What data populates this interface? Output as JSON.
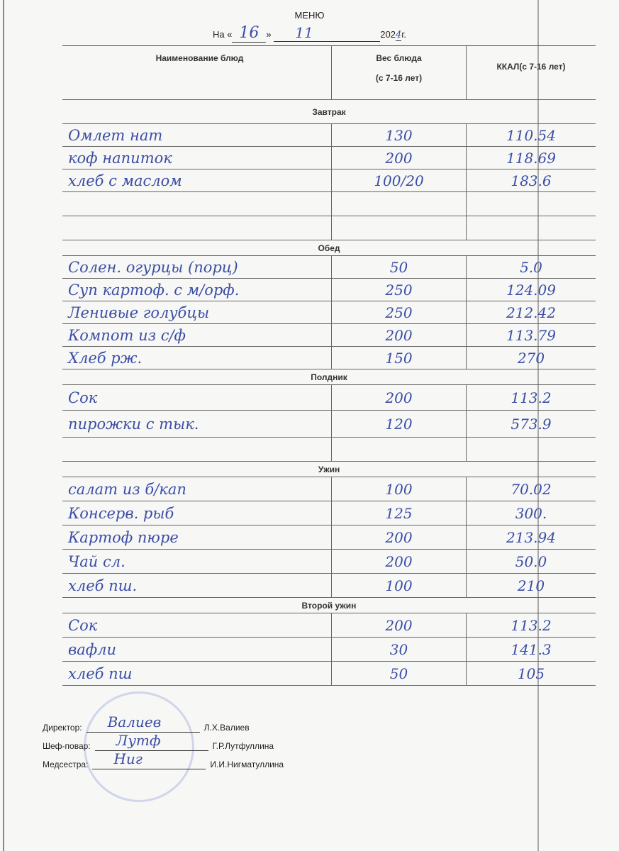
{
  "header": {
    "title": "МЕНЮ",
    "date_prefix": "На «",
    "day": "16",
    "date_mid": "»",
    "month": "11",
    "year_prefix": "202",
    "year_digit": "4",
    "year_suffix": "г."
  },
  "columns": {
    "name": "Наименование блюд",
    "weight": "Вес блюда",
    "weight_sub": "(с 7-16 лет)",
    "kcal": "ККАЛ(с 7-16 лет)"
  },
  "sections": [
    {
      "title": "Завтрак",
      "rows": [
        {
          "name": "Омлет нат",
          "weight": "130",
          "kcal": "110.54"
        },
        {
          "name": "коф напиток",
          "weight": "200",
          "kcal": "118.69"
        },
        {
          "name": "хлеб с маслом",
          "weight": "100/20",
          "kcal": "183.6"
        },
        {
          "name": "",
          "weight": "",
          "kcal": ""
        },
        {
          "name": "",
          "weight": "",
          "kcal": ""
        }
      ]
    },
    {
      "title": "Обед",
      "rows": [
        {
          "name": "Солен. огурцы (порц)",
          "weight": "50",
          "kcal": "5.0"
        },
        {
          "name": "Суп картоф. с м/орф.",
          "weight": "250",
          "kcal": "124.09"
        },
        {
          "name": "Ленивые голубцы",
          "weight": "250",
          "kcal": "212.42"
        },
        {
          "name": "Компот из с/ф",
          "weight": "200",
          "kcal": "113.79"
        },
        {
          "name": "Хлеб рж.",
          "weight": "150",
          "kcal": "270"
        }
      ]
    },
    {
      "title": "Полдник",
      "rows": [
        {
          "name": "Сок",
          "weight": "200",
          "kcal": "113.2"
        },
        {
          "name": "пирожки с тык.",
          "weight": "120",
          "kcal": "573.9"
        },
        {
          "name": "",
          "weight": "",
          "kcal": ""
        }
      ]
    },
    {
      "title": "Ужин",
      "rows": [
        {
          "name": "салат из б/кап",
          "weight": "100",
          "kcal": "70.02"
        },
        {
          "name": "Консерв. рыб",
          "weight": "125",
          "kcal": "300."
        },
        {
          "name": "Картоф пюре",
          "weight": "200",
          "kcal": "213.94"
        },
        {
          "name": "Чай сл.",
          "weight": "200",
          "kcal": "50.0"
        },
        {
          "name": "хлеб пш.",
          "weight": "100",
          "kcal": "210"
        }
      ]
    },
    {
      "title": "Второй ужин",
      "rows": [
        {
          "name": "Сок",
          "weight": "200",
          "kcal": "113.2"
        },
        {
          "name": "вафли",
          "weight": "30",
          "kcal": "141.3"
        },
        {
          "name": "хлеб пш",
          "weight": "50",
          "kcal": "105"
        }
      ]
    }
  ],
  "signatures": [
    {
      "role": "Директор:",
      "name": "Л.Х.Валиев",
      "signature": "Валиев"
    },
    {
      "role": "Шеф-повар:",
      "name": "Г.Р.Лутфуллина",
      "signature": "Лутф"
    },
    {
      "role": "Медсестра:",
      "name": "И.И.Нигматуллина",
      "signature": "Ниг"
    }
  ],
  "colors": {
    "ink": "#3b4ea6",
    "stamp": "#5a6ec8"
  }
}
